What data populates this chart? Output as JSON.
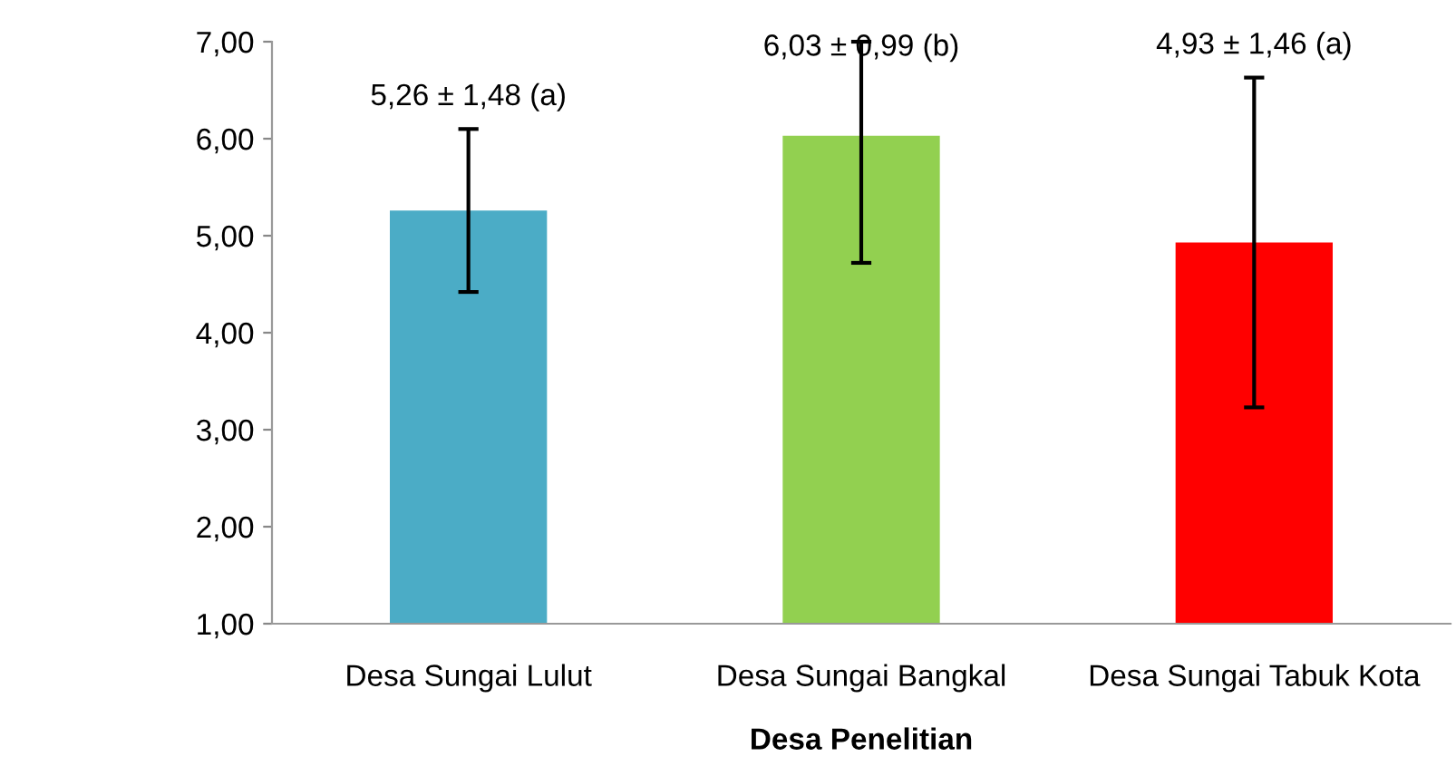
{
  "chart_data": {
    "type": "bar",
    "xlabel": "Desa Penelitian",
    "categories": [
      "Desa Sungai Lulut",
      "Desa Sungai Bangkal",
      "Desa Sungai Tabuk Kota"
    ],
    "values": [
      5.26,
      6.03,
      4.93
    ],
    "colors": [
      "#4bacc6",
      "#92d050",
      "#ff0000"
    ],
    "errors": [
      0.84,
      [
        4.72,
        7.0
      ],
      1.7
    ],
    "ylim": [
      1,
      7
    ],
    "yticks": [
      {
        "value": 1,
        "label": "1,00"
      },
      {
        "value": 2,
        "label": "2,00"
      },
      {
        "value": 3,
        "label": "3,00"
      },
      {
        "value": 4,
        "label": "4,00"
      },
      {
        "value": 5,
        "label": "5,00"
      },
      {
        "value": 6,
        "label": "6,00"
      },
      {
        "value": 7,
        "label": "7,00"
      }
    ],
    "grid": false,
    "legend": false,
    "annotations": [
      "5,26 ± 1,48 (a)",
      "6,03 ± 0,99 (b)",
      "4,93 ± 1,46 (a)"
    ]
  }
}
